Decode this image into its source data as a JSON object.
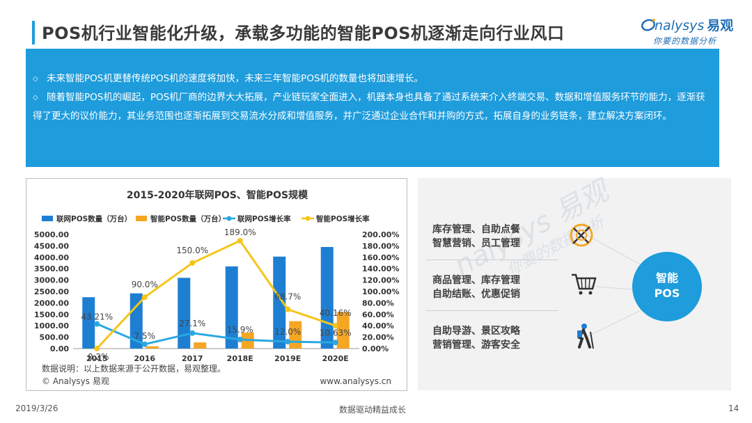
{
  "slide": {
    "title": "POS机行业智能化升级，承载多功能的智能POS机逐渐走向行业风口",
    "logo_main": "nalysys",
    "logo_cn": "易观",
    "logo_sub": "你要的数据分析"
  },
  "summary": {
    "bullet": "◇",
    "items": [
      "未来智能POS机更替传统POS机的速度将加快，未来三年智能POS机的数量也将加速增长。",
      "随着智能POS机的崛起，POS机厂商的边界大大拓展，产业链玩家全面进入，机器本身也具备了通过系统来介入终端交易、数据和增值服务环节的能力，逐渐获得了更大的议价能力，其业务范围也逐渐拓展到交易流水分成和增值服务，并广泛通过企业合作和并购的方式，拓展自身的业务链条，建立解决方案闭环。"
    ]
  },
  "chart_data": {
    "type": "bar",
    "title": "2015-2020年联网POS、智能POS规模",
    "categories": [
      "2015",
      "2016",
      "2017",
      "2018E",
      "2019E",
      "2020E"
    ],
    "series": [
      {
        "name": "联网POS数量（万台）",
        "type": "bar",
        "axis": "left",
        "color": "#1e7fd2",
        "values": [
          2250,
          2420,
          3100,
          3600,
          4030,
          4450
        ]
      },
      {
        "name": "智能POS数量（万台）",
        "type": "bar",
        "axis": "left",
        "color": "#f5a623",
        "values": [
          5,
          100,
          270,
          700,
          1200,
          1600
        ]
      },
      {
        "name": "联网POS增长率",
        "type": "line",
        "axis": "right",
        "color": "#29a8e0",
        "values": [
          43.21,
          7.5,
          27.1,
          15.9,
          12.0,
          10.63
        ],
        "labels": [
          "43.21%",
          "7.5%",
          "27.1%",
          "15.9%",
          "12.0%",
          "10.63%"
        ]
      },
      {
        "name": "智能POS增长率",
        "type": "line",
        "axis": "right",
        "color": "#f5c518",
        "values": [
          0.2,
          90.0,
          150.0,
          189.0,
          68.7,
          40.16
        ],
        "labels": [
          "0.2%",
          "90.0%",
          "150.0%",
          "189.0%",
          "68.7%",
          "40.16%"
        ]
      }
    ],
    "ylim_left": [
      0,
      5000
    ],
    "yticks_left": [
      "0.00",
      "500.00",
      "1000.00",
      "1500.00",
      "2000.00",
      "2500.00",
      "3000.00",
      "3500.00",
      "4000.00",
      "4500.00",
      "5000.00"
    ],
    "ylim_right": [
      0,
      200
    ],
    "yticks_right": [
      "0.00%",
      "20.00%",
      "40.00%",
      "60.00%",
      "80.00%",
      "100.00%",
      "120.00%",
      "140.00%",
      "160.00%",
      "180.00%",
      "200.00%"
    ],
    "legend_position": "top",
    "grid": false,
    "note": "数据说明：以上数据来源于公开数据，易观整理。",
    "copyright": "© Analysys 易观",
    "website": "www.analysys.cn"
  },
  "features": {
    "groups": [
      {
        "line1": "库存管理、自助点餐",
        "line2": "智慧营销、员工管理",
        "icon": "food-service-icon"
      },
      {
        "line1": "商品管理、库存管理",
        "line2": "自助结账、优惠促销",
        "icon": "shopping-cart-icon"
      },
      {
        "line1": "自助导游、景区攻略",
        "line2": "营销管理、游客安全",
        "icon": "hiker-icon"
      }
    ],
    "center_line1": "智能",
    "center_line2": "POS",
    "watermark_1": "nalysys 易观",
    "watermark_2": "你要的数据分析"
  },
  "footer": {
    "date": "2019/3/26",
    "slogan": "数据驱动精益成长",
    "page": "14"
  }
}
